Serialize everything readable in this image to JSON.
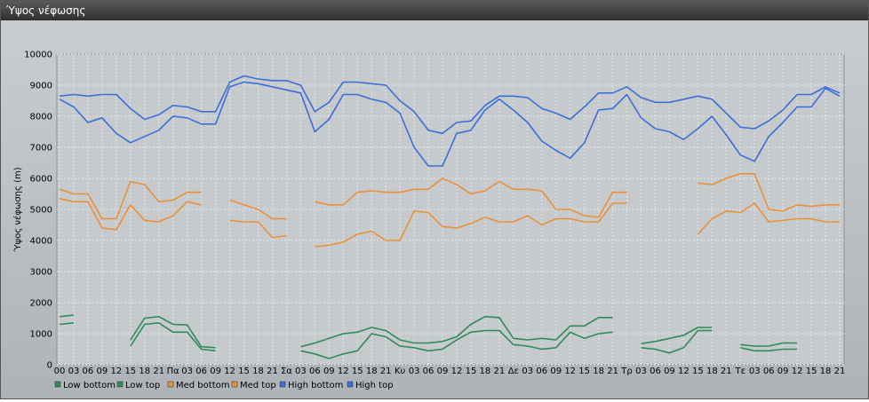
{
  "window": {
    "title": "Ύψος νέφωσης"
  },
  "chart_data": {
    "type": "line",
    "ylabel": "Ύψος νέφωσης (m)",
    "ylim": [
      0,
      10000
    ],
    "yticks": [
      0,
      1000,
      2000,
      3000,
      4000,
      5000,
      6000,
      7000,
      8000,
      9000,
      10000
    ],
    "x_tick_labels": [
      "00",
      "03",
      "06",
      "09",
      "12",
      "15",
      "18",
      "21",
      "Πα",
      "03",
      "06",
      "09",
      "12",
      "15",
      "18",
      "21",
      "Σα",
      "03",
      "06",
      "09",
      "12",
      "15",
      "18",
      "21",
      "Κυ",
      "03",
      "06",
      "09",
      "12",
      "15",
      "18",
      "21",
      "Δε",
      "03",
      "06",
      "09",
      "12",
      "15",
      "18",
      "21",
      "Τρ",
      "03",
      "06",
      "09",
      "12",
      "15",
      "18",
      "21",
      "Τε",
      "03",
      "06",
      "09",
      "12",
      "15",
      "18",
      "21"
    ],
    "grid": true,
    "legend_position": "bottom-left",
    "series": [
      {
        "name": "Low bottom",
        "color": "#2e8b57",
        "values": [
          1300,
          1350,
          null,
          null,
          null,
          600,
          1300,
          1350,
          1050,
          1050,
          500,
          450,
          null,
          null,
          null,
          null,
          null,
          450,
          350,
          200,
          350,
          450,
          1000,
          900,
          600,
          550,
          450,
          500,
          800,
          1050,
          1100,
          1100,
          650,
          600,
          500,
          550,
          1050,
          850,
          1000,
          1050,
          null,
          550,
          500,
          380,
          550,
          1100,
          1100,
          null,
          550,
          450,
          450,
          500,
          500,
          null,
          null,
          null
        ]
      },
      {
        "name": "Low top",
        "color": "#2e8b57",
        "values": [
          1550,
          1600,
          null,
          null,
          null,
          800,
          1500,
          1550,
          1300,
          1280,
          580,
          550,
          null,
          null,
          null,
          null,
          null,
          580,
          700,
          850,
          1000,
          1050,
          1200,
          1100,
          800,
          700,
          700,
          750,
          900,
          1300,
          1550,
          1520,
          850,
          800,
          850,
          800,
          1250,
          1250,
          1520,
          1520,
          null,
          680,
          750,
          850,
          950,
          1200,
          1200,
          null,
          650,
          600,
          600,
          700,
          700,
          null,
          null,
          null
        ]
      },
      {
        "name": "Med bottom",
        "color": "#e8913a",
        "values": [
          5350,
          5250,
          5250,
          4400,
          4350,
          5150,
          4650,
          4600,
          4800,
          5250,
          5150,
          null,
          4650,
          4600,
          4600,
          4100,
          4150,
          null,
          3800,
          3850,
          3950,
          4200,
          4300,
          4000,
          4000,
          4950,
          4900,
          4450,
          4400,
          4550,
          4750,
          4600,
          4600,
          4800,
          4500,
          4700,
          4700,
          4600,
          4600,
          5200,
          5200,
          null,
          null,
          null,
          null,
          4200,
          4700,
          4950,
          4900,
          5200,
          4600,
          4650,
          4700,
          4700,
          4600,
          4600
        ]
      },
      {
        "name": "Med top",
        "color": "#e8913a",
        "values": [
          5650,
          5500,
          5500,
          4700,
          4700,
          5900,
          5800,
          5250,
          5300,
          5550,
          5550,
          null,
          5300,
          5150,
          5000,
          4700,
          4700,
          null,
          5250,
          5150,
          5150,
          5550,
          5600,
          5550,
          5550,
          5650,
          5650,
          6000,
          5800,
          5500,
          5600,
          5900,
          5650,
          5650,
          5600,
          5000,
          5000,
          4800,
          4750,
          5550,
          5550,
          null,
          null,
          null,
          null,
          5850,
          5800,
          6000,
          6150,
          6150,
          5000,
          4950,
          5150,
          5100,
          5150,
          5150
        ]
      },
      {
        "name": "High bottom",
        "color": "#3a6fd8",
        "values": [
          8550,
          8300,
          7800,
          7950,
          7450,
          7150,
          7350,
          7550,
          8000,
          7950,
          7750,
          7750,
          8950,
          9100,
          9050,
          8950,
          8850,
          8750,
          7500,
          7900,
          8700,
          8700,
          8550,
          8450,
          8100,
          7000,
          6400,
          6400,
          7450,
          7550,
          8200,
          8550,
          8200,
          7800,
          7200,
          6900,
          6650,
          7150,
          8200,
          8250,
          8700,
          7950,
          7600,
          7500,
          7250,
          7600,
          8000,
          7400,
          6750,
          6550,
          7350,
          7800,
          8300,
          8300,
          8900,
          8650
        ]
      },
      {
        "name": "High top",
        "color": "#3a6fd8",
        "values": [
          8650,
          8700,
          8650,
          8700,
          8700,
          8250,
          7900,
          8050,
          8350,
          8300,
          8150,
          8150,
          9100,
          9300,
          9200,
          9150,
          9150,
          9000,
          8150,
          8450,
          9100,
          9100,
          9050,
          9000,
          8500,
          8150,
          7550,
          7450,
          7800,
          7850,
          8350,
          8650,
          8650,
          8600,
          8250,
          8100,
          7900,
          8300,
          8750,
          8750,
          8950,
          8600,
          8450,
          8450,
          8550,
          8650,
          8550,
          8100,
          7650,
          7600,
          7850,
          8200,
          8700,
          8700,
          8950,
          8750
        ]
      }
    ]
  }
}
